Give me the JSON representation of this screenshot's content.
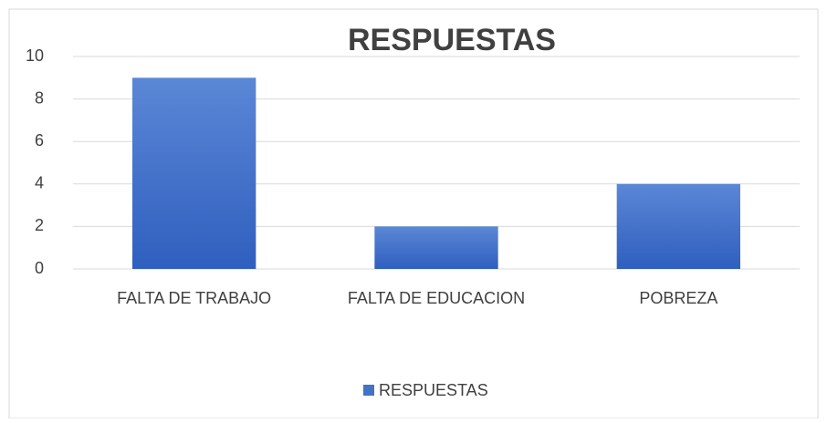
{
  "chart_data": {
    "type": "bar",
    "title": "RESPUESTAS",
    "categories": [
      "FALTA DE TRABAJO",
      "FALTA DE EDUCACION",
      "POBREZA"
    ],
    "series": [
      {
        "name": "RESPUESTAS",
        "color": "#4472c4",
        "values": [
          9,
          2,
          4
        ]
      }
    ],
    "ylim": [
      0,
      10
    ],
    "yticks": [
      0,
      2,
      4,
      6,
      8,
      10
    ],
    "grid": true,
    "legend": "bottom"
  }
}
